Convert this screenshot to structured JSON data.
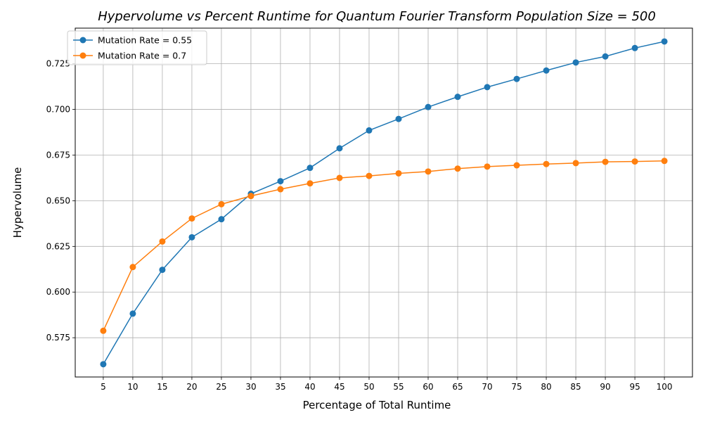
{
  "chart_data": {
    "type": "line",
    "title": "Hypervolume vs Percent Runtime for Quantum Fourier Transform Population Size = 500",
    "xlabel": "Percentage of Total Runtime",
    "ylabel": "Hypervolume",
    "x": [
      5,
      10,
      15,
      20,
      25,
      30,
      35,
      40,
      45,
      50,
      55,
      60,
      65,
      70,
      75,
      80,
      85,
      90,
      95,
      100
    ],
    "xticks": [
      "5",
      "10",
      "15",
      "20",
      "25",
      "30",
      "35",
      "40",
      "45",
      "50",
      "55",
      "60",
      "65",
      "70",
      "75",
      "80",
      "85",
      "90",
      "95",
      "100"
    ],
    "yticks": [
      "0.575",
      "0.600",
      "0.625",
      "0.650",
      "0.675",
      "0.700",
      "0.725"
    ],
    "ylim": [
      0.5535,
      0.7445
    ],
    "xlim": [
      0.25,
      104.75
    ],
    "grid": true,
    "legend_position": "top-left",
    "series": [
      {
        "name": "Mutation Rate = 0.55",
        "color": "#1f77b4",
        "values": [
          0.5605,
          0.5882,
          0.6122,
          0.63,
          0.6399,
          0.6538,
          0.6607,
          0.668,
          0.6787,
          0.6885,
          0.6948,
          0.7013,
          0.7069,
          0.7122,
          0.7167,
          0.7213,
          0.7257,
          0.729,
          0.7336,
          0.7372
        ]
      },
      {
        "name": "Mutation Rate = 0.7",
        "color": "#ff7f0e",
        "values": [
          0.5788,
          0.6137,
          0.6277,
          0.6403,
          0.6481,
          0.6526,
          0.6563,
          0.6595,
          0.6625,
          0.6636,
          0.665,
          0.666,
          0.6676,
          0.6687,
          0.6694,
          0.6701,
          0.6706,
          0.6713,
          0.6715,
          0.6718
        ]
      }
    ]
  }
}
